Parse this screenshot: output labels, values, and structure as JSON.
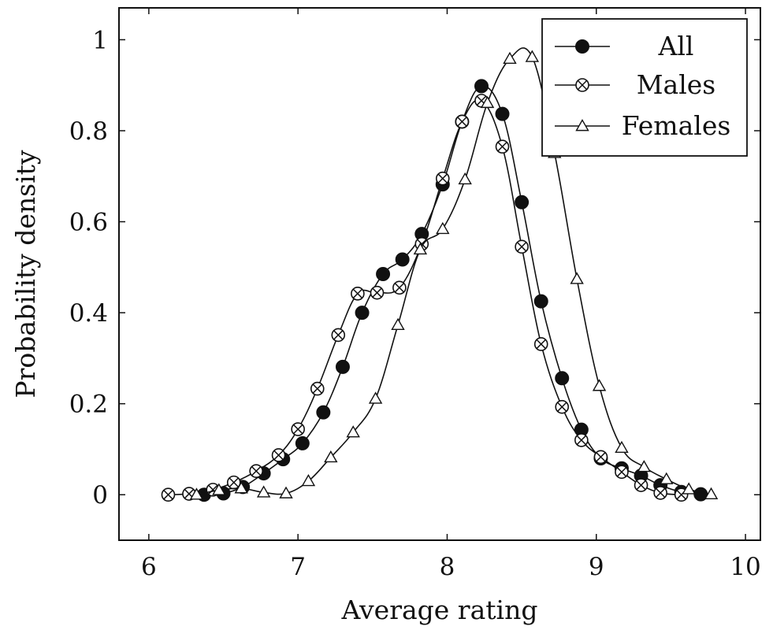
{
  "chart_data": {
    "type": "line",
    "title": "",
    "xlabel": "Average rating",
    "ylabel": "Probability density",
    "xlim": [
      5.8,
      10.1
    ],
    "ylim": [
      -0.1,
      1.07
    ],
    "xticks": [
      6,
      7,
      8,
      9,
      10
    ],
    "xtick_labels": [
      "6",
      "7",
      "8",
      "9",
      "10"
    ],
    "yticks": [
      0,
      0.2,
      0.4,
      0.6,
      0.8,
      1
    ],
    "ytick_labels": [
      "0",
      "0.2",
      "0.4",
      "0.6",
      "0.8",
      "1"
    ],
    "grid": false,
    "legend_position": "top-right",
    "series": [
      {
        "name": "All",
        "marker": "filled-circle",
        "x": [
          6.37,
          6.5,
          6.63,
          6.77,
          6.9,
          7.03,
          7.17,
          7.3,
          7.43,
          7.57,
          7.7,
          7.83,
          7.97,
          8.1,
          8.23,
          8.37,
          8.5,
          8.63,
          8.77,
          8.9,
          9.03,
          9.17,
          9.3,
          9.43,
          9.57,
          9.7
        ],
        "y": [
          0.0,
          0.003,
          0.017,
          0.047,
          0.078,
          0.113,
          0.181,
          0.281,
          0.4,
          0.485,
          0.517,
          0.573,
          0.682,
          0.82,
          0.898,
          0.837,
          0.643,
          0.425,
          0.256,
          0.143,
          0.08,
          0.058,
          0.042,
          0.021,
          0.006,
          0.001
        ]
      },
      {
        "name": "Males",
        "marker": "circle-cross",
        "x": [
          6.13,
          6.27,
          6.43,
          6.57,
          6.72,
          6.87,
          7.0,
          7.13,
          7.27,
          7.4,
          7.53,
          7.68,
          7.83,
          7.97,
          8.1,
          8.23,
          8.37,
          8.5,
          8.63,
          8.77,
          8.9,
          9.03,
          9.17,
          9.3,
          9.43,
          9.57
        ],
        "y": [
          0.0,
          0.002,
          0.011,
          0.027,
          0.052,
          0.087,
          0.144,
          0.233,
          0.351,
          0.442,
          0.444,
          0.455,
          0.551,
          0.695,
          0.82,
          0.866,
          0.765,
          0.545,
          0.331,
          0.193,
          0.12,
          0.083,
          0.05,
          0.021,
          0.004,
          0.0
        ]
      },
      {
        "name": "Females",
        "marker": "open-triangle",
        "x": [
          6.32,
          6.47,
          6.62,
          6.77,
          6.92,
          7.07,
          7.22,
          7.37,
          7.52,
          7.67,
          7.82,
          7.97,
          8.12,
          8.27,
          8.42,
          8.57,
          8.72,
          8.87,
          9.02,
          9.17,
          9.32,
          9.47,
          9.62,
          9.77
        ],
        "y": [
          0.0,
          0.01,
          0.014,
          0.005,
          0.003,
          0.03,
          0.082,
          0.137,
          0.211,
          0.373,
          0.539,
          0.584,
          0.693,
          0.861,
          0.958,
          0.962,
          0.751,
          0.474,
          0.239,
          0.103,
          0.061,
          0.034,
          0.012,
          0.001
        ]
      }
    ]
  }
}
